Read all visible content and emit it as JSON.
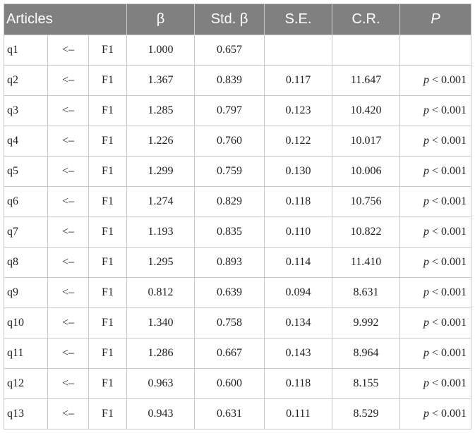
{
  "table": {
    "headers": [
      "Articles",
      "β",
      "Std. β",
      "S.E.",
      "C.R.",
      "P"
    ],
    "rows": [
      {
        "item": "q1",
        "arrow": "<–",
        "factor": "F1",
        "beta": "1.000",
        "std_beta": "0.657",
        "se": "",
        "cr": "",
        "p_symbol": "",
        "p_rest": ""
      },
      {
        "item": "q2",
        "arrow": "<–",
        "factor": "F1",
        "beta": "1.367",
        "std_beta": "0.839",
        "se": "0.117",
        "cr": "11.647",
        "p_symbol": "p",
        "p_rest": " < 0.001"
      },
      {
        "item": "q3",
        "arrow": "<–",
        "factor": "F1",
        "beta": "1.285",
        "std_beta": "0.797",
        "se": "0.123",
        "cr": "10.420",
        "p_symbol": "p",
        "p_rest": " < 0.001"
      },
      {
        "item": "q4",
        "arrow": "<–",
        "factor": "F1",
        "beta": "1.226",
        "std_beta": "0.760",
        "se": "0.122",
        "cr": "10.017",
        "p_symbol": "p",
        "p_rest": " < 0.001"
      },
      {
        "item": "q5",
        "arrow": "<–",
        "factor": "F1",
        "beta": "1.299",
        "std_beta": "0.759",
        "se": "0.130",
        "cr": "10.006",
        "p_symbol": "p",
        "p_rest": " < 0.001"
      },
      {
        "item": "q6",
        "arrow": "<–",
        "factor": "F1",
        "beta": "1.274",
        "std_beta": "0.829",
        "se": "0.118",
        "cr": "10.756",
        "p_symbol": "p",
        "p_rest": " < 0.001"
      },
      {
        "item": "q7",
        "arrow": "<–",
        "factor": "F1",
        "beta": "1.193",
        "std_beta": "0.835",
        "se": "0.110",
        "cr": "10.822",
        "p_symbol": "p",
        "p_rest": " < 0.001"
      },
      {
        "item": "q8",
        "arrow": "<–",
        "factor": "F1",
        "beta": "1.295",
        "std_beta": "0.893",
        "se": "0.114",
        "cr": "11.410",
        "p_symbol": "p",
        "p_rest": " < 0.001"
      },
      {
        "item": "q9",
        "arrow": "<–",
        "factor": "F1",
        "beta": "0.812",
        "std_beta": "0.639",
        "se": "0.094",
        "cr": "8.631",
        "p_symbol": "p",
        "p_rest": " < 0.001"
      },
      {
        "item": "q10",
        "arrow": "<–",
        "factor": "F1",
        "beta": "1.340",
        "std_beta": "0.758",
        "se": "0.134",
        "cr": "9.992",
        "p_symbol": "p",
        "p_rest": " < 0.001"
      },
      {
        "item": "q11",
        "arrow": "<–",
        "factor": "F1",
        "beta": "1.286",
        "std_beta": "0.667",
        "se": "0.143",
        "cr": "8.964",
        "p_symbol": "p",
        "p_rest": " < 0.001"
      },
      {
        "item": "q12",
        "arrow": "<–",
        "factor": "F1",
        "beta": "0.963",
        "std_beta": "0.600",
        "se": "0.118",
        "cr": "8.155",
        "p_symbol": "p",
        "p_rest": " < 0.001"
      },
      {
        "item": "q13",
        "arrow": "<–",
        "factor": "F1",
        "beta": "0.943",
        "std_beta": "0.631",
        "se": "0.111",
        "cr": "8.529",
        "p_symbol": "p",
        "p_rest": " < 0.001"
      }
    ]
  },
  "colors": {
    "header_background": "#808080",
    "header_text": "#ffffff",
    "grid_line": "#c8c8c8",
    "body_text": "#222222"
  }
}
